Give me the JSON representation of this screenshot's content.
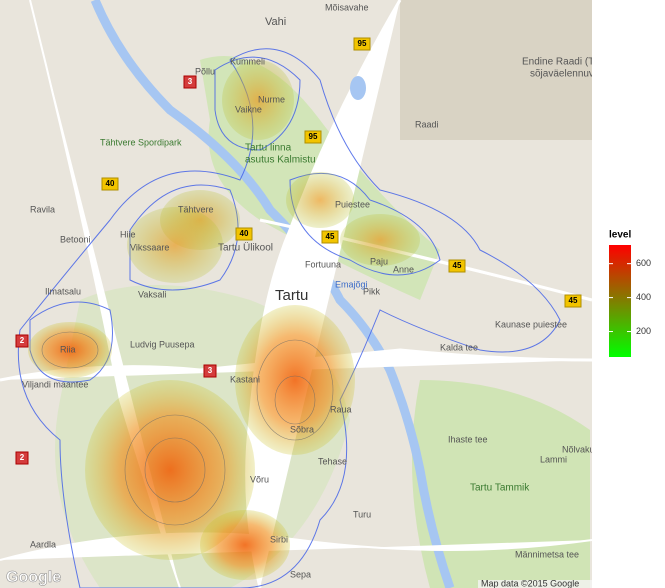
{
  "map": {
    "labels": [
      "Vahi",
      "Mõisavahe",
      "Kummeli",
      "Põllu",
      "Nurme",
      "Vaikne",
      "Tähtvere Spordipark",
      "Tartu linna",
      "asutus Kalmistu",
      "Tähtvere",
      "Hiie",
      "Vikssaare",
      "Tartu Ülikool",
      "Puiestee",
      "Fortuuna",
      "Tartu",
      "Pikk",
      "Anne",
      "Paju",
      "Emajõgi",
      "Ilmatsalu",
      "Riia",
      "Betooni",
      "Ravila",
      "Vaksali",
      "Ludvig Puusepa",
      "Kastani",
      "Raua",
      "Sõbra",
      "Tehase",
      "Võru",
      "Aardla",
      "Sirbi",
      "Turu",
      "Kalda tee",
      "Kaunase puiestee",
      "Ihaste tee",
      "Tartu Tammik",
      "Raadi",
      "Endine Raadi (T",
      "sõjaväelennuv",
      "Viljandi maantee",
      "Sepa",
      "Männimetsa tee",
      "Lammi",
      "Nõlvaku"
    ],
    "roads": [
      "95",
      "95",
      "40",
      "40",
      "45",
      "45",
      "45",
      "3",
      "3",
      "2",
      "2"
    ],
    "attribution": "Map data ©2015 Google",
    "logo": "Google"
  },
  "legend": {
    "title": "level",
    "ticks": [
      200,
      400,
      600
    ],
    "limits": [
      50,
      710
    ],
    "colors": [
      "#00ff00",
      "#ff0000"
    ]
  }
}
